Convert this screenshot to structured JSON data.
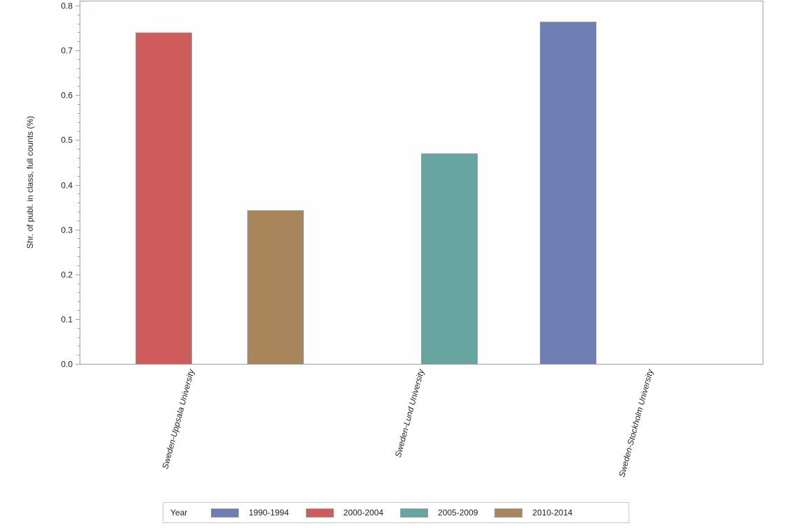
{
  "chart_data": {
    "type": "bar",
    "title": "",
    "xlabel": "",
    "ylabel": "Shr. of publ. in class, full counts (%)",
    "ylim": [
      0,
      0.8
    ],
    "yticks": [
      "0.0",
      "0.1",
      "0.2",
      "0.3",
      "0.4",
      "0.5",
      "0.6",
      "0.7",
      "0.8"
    ],
    "grid": false,
    "legend_position": "bottom",
    "legend_title": "Year",
    "categories": [
      "Sweden-Uppsala University",
      "Sweden-Lund University",
      "Sweden-Stockholm University"
    ],
    "series": [
      {
        "name": "1990-1994",
        "color": "#6f7eb3",
        "values": [
          null,
          null,
          0.764
        ]
      },
      {
        "name": "2000-2004",
        "color": "#d05b5b",
        "values": [
          0.74,
          null,
          null
        ]
      },
      {
        "name": "2005-2009",
        "color": "#66a5a0",
        "values": [
          null,
          0.47,
          null
        ]
      },
      {
        "name": "2010-2014",
        "color": "#a8855b",
        "values": [
          0.343,
          null,
          null
        ]
      }
    ]
  },
  "legend": {
    "title": "Year",
    "items": [
      {
        "label": "1990-1994",
        "color": "#6f7eb3"
      },
      {
        "label": "2000-2004",
        "color": "#d05b5b"
      },
      {
        "label": "2005-2009",
        "color": "#66a5a0"
      },
      {
        "label": "2010-2014",
        "color": "#a8855b"
      }
    ]
  }
}
